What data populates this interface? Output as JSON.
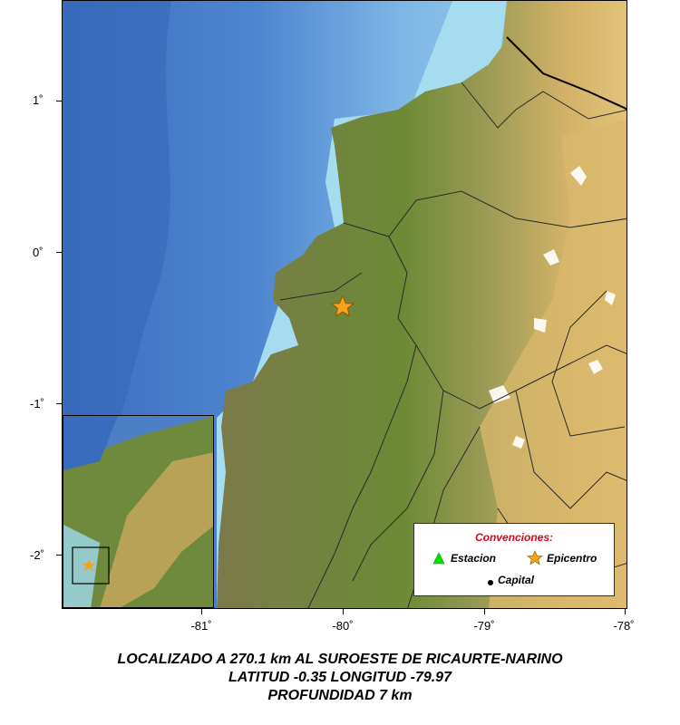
{
  "map": {
    "y_ticks": [
      "1˚",
      "0˚",
      "-1˚",
      "-2˚"
    ],
    "x_ticks": [
      "-81˚",
      "-80˚",
      "-79˚",
      "-78˚"
    ],
    "epicenter": {
      "lon": -79.97,
      "lat": -0.35
    },
    "colors": {
      "ocean_deep": "#3b74c6",
      "ocean_mid": "#7fb7e6",
      "ocean_shelf": "#a9dff0",
      "lowland": "#6e8a3c",
      "land_mid": "#8c8a55",
      "highland": "#c9a95c",
      "peak": "#ffffff",
      "epicenter_fill": "#f7a21b"
    }
  },
  "legend": {
    "title": "Convenciones:",
    "station_label": "Estacion",
    "epicenter_label": "Epicentro",
    "capital_label": "Capital"
  },
  "caption": {
    "line1": "LOCALIZADO A  270.1  km  AL SUROESTE DE  RICAURTE-NARINO",
    "line2": "LATITUD  -0.35  LONGITUD  -79.97",
    "line3": "PROFUNDIDAD  7  km"
  }
}
